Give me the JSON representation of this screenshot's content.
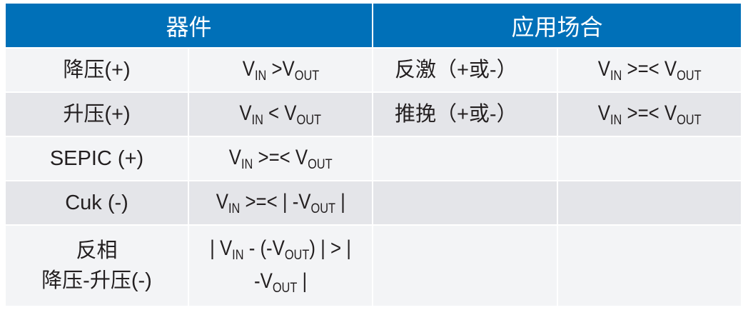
{
  "header": {
    "device": "器件",
    "application": "应用场合"
  },
  "rows": [
    {
      "device": [
        "降压(+)"
      ],
      "cond": [
        [
          [
            "V",
            ""
          ],
          [
            "IN",
            "s"
          ],
          [
            " >V",
            ""
          ],
          [
            "OUT",
            "s"
          ]
        ]
      ],
      "app": "反激（+或-）",
      "app_cond": [
        [
          [
            "V",
            ""
          ],
          [
            "IN",
            "s"
          ],
          [
            " >=< V",
            ""
          ],
          [
            "OUT",
            "s"
          ]
        ]
      ]
    },
    {
      "device": [
        "升压(+)"
      ],
      "cond": [
        [
          [
            "V",
            ""
          ],
          [
            "IN",
            "s"
          ],
          [
            " < V",
            ""
          ],
          [
            "OUT",
            "s"
          ]
        ]
      ],
      "app": "推挽（+或-）",
      "app_cond": [
        [
          [
            "V",
            ""
          ],
          [
            "IN",
            "s"
          ],
          [
            " >=< V",
            ""
          ],
          [
            "OUT",
            "s"
          ]
        ]
      ]
    },
    {
      "device": [
        "SEPIC (+)"
      ],
      "cond": [
        [
          [
            "V",
            ""
          ],
          [
            "IN",
            "s"
          ],
          [
            " >=< V",
            ""
          ],
          [
            "OUT",
            "s"
          ]
        ]
      ],
      "app": "",
      "app_cond": []
    },
    {
      "device": [
        "Cuk (-)"
      ],
      "cond": [
        [
          [
            "V",
            ""
          ],
          [
            "IN",
            "s"
          ],
          [
            " >=< | -V",
            ""
          ],
          [
            "OUT",
            "s"
          ],
          [
            " |",
            ""
          ]
        ]
      ],
      "app": "",
      "app_cond": []
    },
    {
      "device": [
        "反相",
        "降压-升压(-)"
      ],
      "cond": [
        [
          [
            "| V",
            ""
          ],
          [
            "IN",
            "s"
          ],
          [
            " - (-V",
            ""
          ],
          [
            "OUT",
            "s"
          ],
          [
            ") | > |",
            ""
          ]
        ],
        [
          [
            "-V",
            ""
          ],
          [
            "OUT",
            "s"
          ],
          [
            " |",
            ""
          ]
        ]
      ],
      "app": "",
      "app_cond": []
    }
  ],
  "colors": {
    "header_bg": "#0070b8",
    "row_light": "#f3f4f6",
    "row_dark": "#e4e5e9"
  }
}
